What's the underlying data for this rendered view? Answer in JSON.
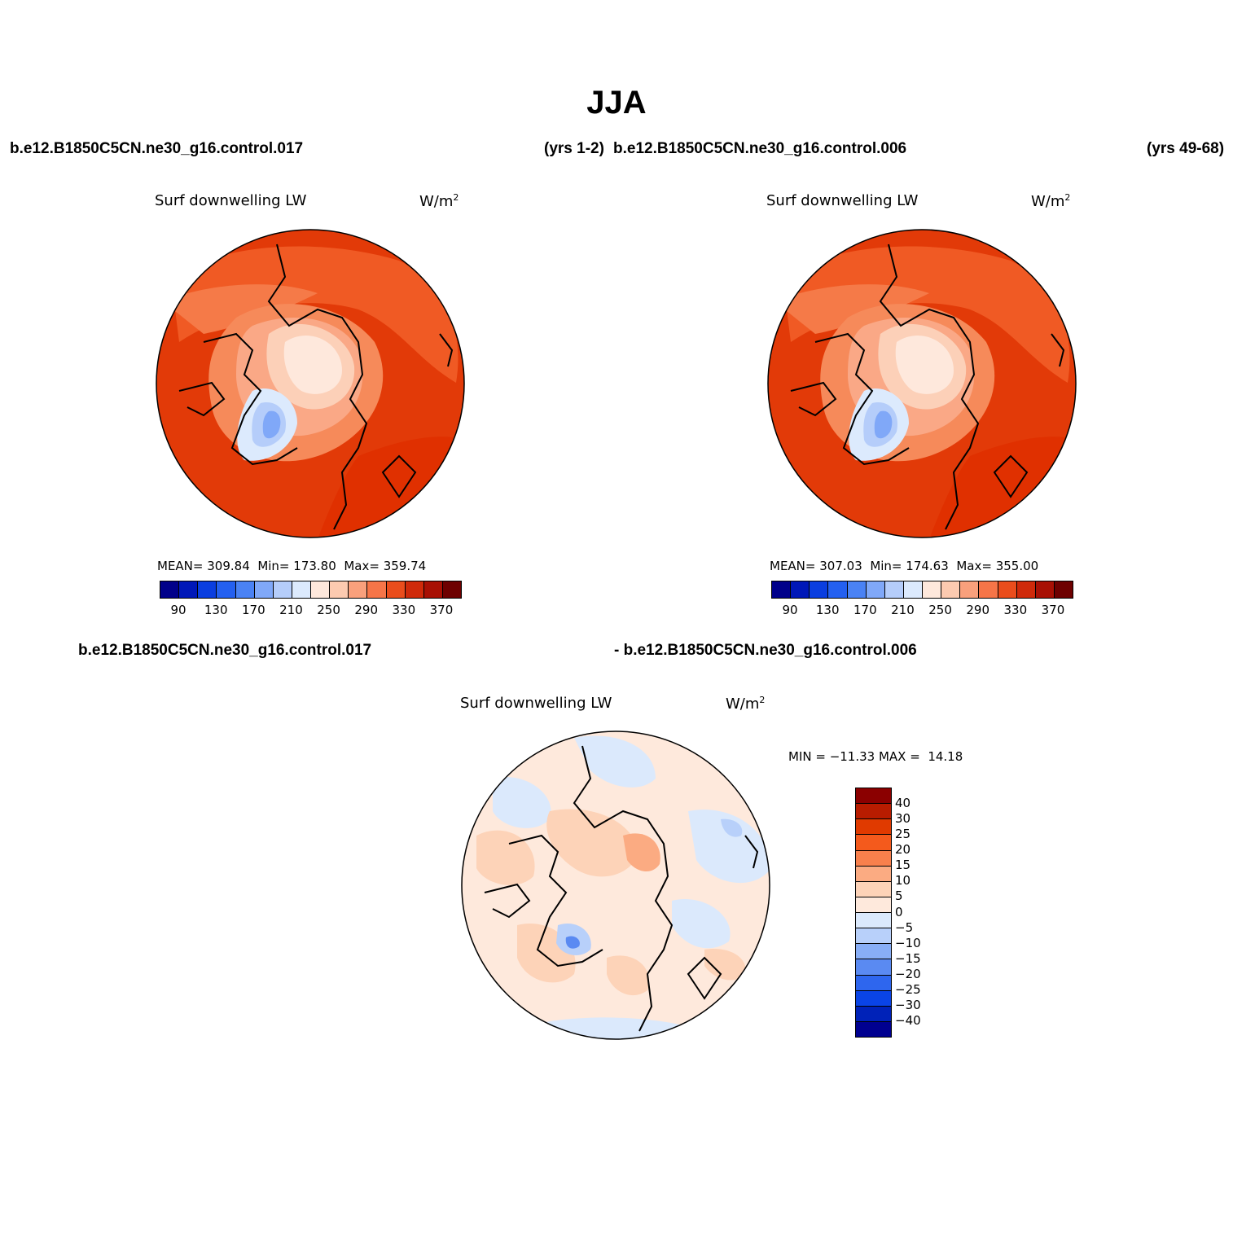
{
  "title": "JJA",
  "top_left_run": "b.e12.B1850C5CN.ne30_g16.control.017",
  "top_left_years": "(yrs 1-2)",
  "top_right_run": "b.e12.B1850C5CN.ne30_g16.control.006",
  "top_right_years": "(yrs 49-68)",
  "bottom_run_a": "b.e12.B1850C5CN.ne30_g16.control.017",
  "bottom_run_b": "- b.e12.B1850C5CN.ne30_g16.control.006",
  "variable": "Surf downwelling LW",
  "units_base": "W/m",
  "units_exp": "2",
  "panel1": {
    "mean_label": "MEAN=",
    "mean": "309.84",
    "min_label": "Min=",
    "min": "173.80",
    "max_label": "Max=",
    "max": "359.74"
  },
  "panel2": {
    "mean_label": "MEAN=",
    "mean": "307.03",
    "min_label": "Min=",
    "min": "174.63",
    "max_label": "Max=",
    "max": "355.00"
  },
  "panel3": {
    "minmax": "MIN = −11.33 MAX =  14.18"
  },
  "abs_colorbar": {
    "colors": [
      "#00008a",
      "#0018b8",
      "#0a3ee0",
      "#2460f0",
      "#4a82f4",
      "#80a8f8",
      "#b5cdfa",
      "#dceafd",
      "#fee8dc",
      "#fccab0",
      "#f9a07c",
      "#f67548",
      "#ea4d1c",
      "#cf2a0a",
      "#a81004",
      "#6e0000"
    ],
    "tick_labels": [
      "90",
      "130",
      "170",
      "210",
      "250",
      "290",
      "330",
      "370"
    ]
  },
  "diff_colorbar": {
    "colors": [
      "#8b0000",
      "#b81c00",
      "#e03a00",
      "#f45a1c",
      "#f8804c",
      "#fbab82",
      "#fdd3b8",
      "#fee9dc",
      "#dbe9fc",
      "#b8d0fa",
      "#88aef6",
      "#5a8af2",
      "#2e66ee",
      "#0a44e6",
      "#0022b8",
      "#000090"
    ],
    "tick_labels": [
      "40",
      "30",
      "25",
      "20",
      "15",
      "10",
      "5",
      "0",
      "−5",
      "−10",
      "−15",
      "−20",
      "−25",
      "−30",
      "−40"
    ]
  }
}
